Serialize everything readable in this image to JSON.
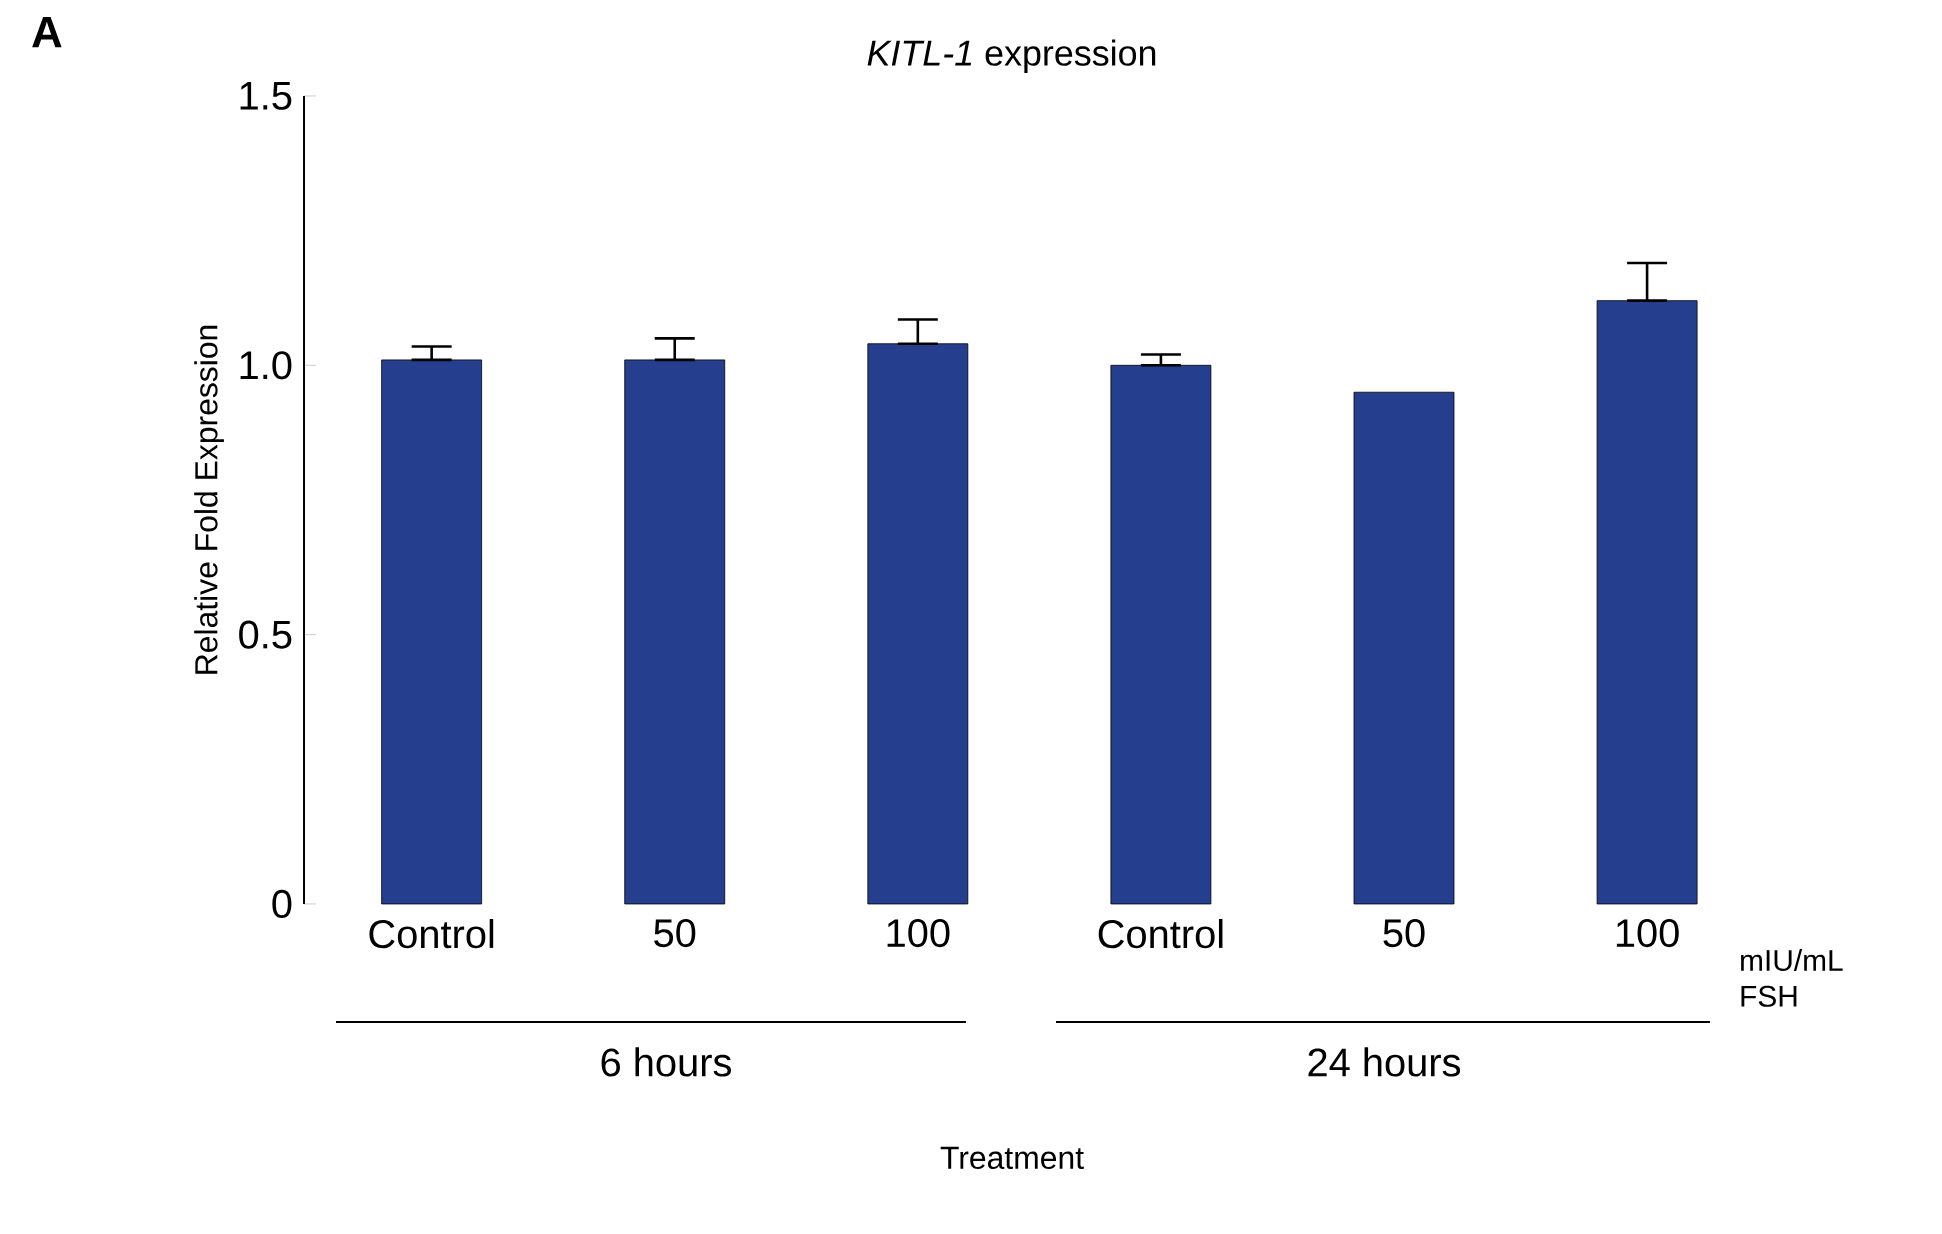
{
  "chart_data": {
    "type": "bar",
    "title": "*KITL-1* expression",
    "ylabel": "Relative Fold Expression",
    "categories": [
      "Control",
      "50",
      "100",
      "Control",
      "50",
      "100"
    ],
    "values": [
      1.01,
      1.01,
      1.04,
      1.0,
      0.95,
      1.12
    ],
    "errors": [
      [
        1.01,
        1.035
      ],
      [
        1.01,
        1.05
      ],
      [
        1.04,
        1.085
      ],
      [
        1.0,
        1.02
      ],
      null,
      [
        1.12,
        1.19
      ]
    ],
    "color": "#253f8e",
    "ylim": [
      0,
      1.5
    ],
    "yticks": [
      0,
      {
        "value": 0.5,
        "label": "0.5"
      },
      {
        "value": 1.0,
        "label": "1.0"
      },
      1.5
    ],
    "annotations": [
      "A",
      "mIU/mL FSH",
      "6 hours",
      "24 hours",
      "Treatment"
    ]
  }
}
